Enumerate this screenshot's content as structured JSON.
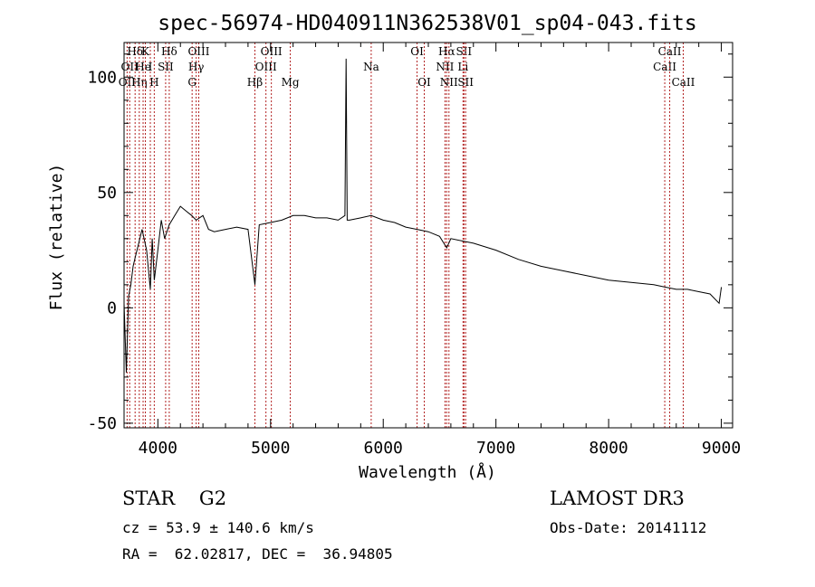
{
  "chart_data": {
    "type": "line",
    "title": "spec-56974-HD040911N362538V01_sp04-043.fits",
    "xlabel": "Wavelength (Å)",
    "ylabel": "Flux (relative)",
    "xlim": [
      3700,
      9100
    ],
    "ylim": [
      -52,
      115
    ],
    "xticks": [
      4000,
      5000,
      6000,
      7000,
      8000,
      9000
    ],
    "yticks": [
      -50,
      0,
      50,
      100
    ],
    "line_color": "#000000",
    "marker_color": "#b22222",
    "series": [
      {
        "name": "spectrum",
        "x": [
          3700,
          3720,
          3740,
          3760,
          3780,
          3800,
          3830,
          3860,
          3900,
          3933,
          3950,
          3968,
          4000,
          4030,
          4060,
          4101,
          4150,
          4200,
          4250,
          4300,
          4340,
          4400,
          4450,
          4500,
          4600,
          4700,
          4800,
          4861,
          4900,
          5000,
          5100,
          5200,
          5300,
          5400,
          5500,
          5600,
          5660,
          5670,
          5680,
          5700,
          5800,
          5893,
          6000,
          6100,
          6200,
          6300,
          6400,
          6500,
          6563,
          6600,
          6700,
          6800,
          7000,
          7200,
          7400,
          7600,
          7800,
          8000,
          8200,
          8400,
          8500,
          8600,
          8700,
          8800,
          8900,
          8980,
          9000
        ],
        "y": [
          2,
          -28,
          5,
          10,
          18,
          22,
          28,
          34,
          25,
          8,
          30,
          12,
          25,
          38,
          30,
          36,
          40,
          44,
          42,
          40,
          38,
          40,
          34,
          33,
          34,
          35,
          34,
          10,
          36,
          37,
          38,
          40,
          40,
          39,
          39,
          38,
          40,
          108,
          38,
          38,
          39,
          40,
          38,
          37,
          35,
          34,
          33,
          31,
          26,
          30,
          29,
          28,
          25,
          21,
          18,
          16,
          14,
          12,
          11,
          10,
          9,
          8,
          8,
          7,
          6,
          2,
          9
        ]
      }
    ],
    "lines": [
      {
        "wl": 3727,
        "row": 2,
        "label": "OII"
      },
      {
        "wl": 3750,
        "row": 1,
        "label": "OII"
      },
      {
        "wl": 3798,
        "row": 0,
        "label": "Hδ"
      },
      {
        "wl": 3835,
        "row": 2,
        "label": "Hη"
      },
      {
        "wl": 3869,
        "row": 1,
        "label": "He"
      },
      {
        "wl": 3889,
        "row": 0,
        "label": "K"
      },
      {
        "wl": 3933,
        "row": 1,
        "label": "I"
      },
      {
        "wl": 3968,
        "row": 2,
        "label": "H"
      },
      {
        "wl": 4069,
        "row": 1,
        "label": "SII"
      },
      {
        "wl": 4101,
        "row": 0,
        "label": "Hδ"
      },
      {
        "wl": 4304,
        "row": 2,
        "label": "G"
      },
      {
        "wl": 4340,
        "row": 1,
        "label": "Hγ"
      },
      {
        "wl": 4363,
        "row": 0,
        "label": "OIII"
      },
      {
        "wl": 4861,
        "row": 2,
        "label": "Hβ"
      },
      {
        "wl": 4959,
        "row": 1,
        "label": "OIII"
      },
      {
        "wl": 5007,
        "row": 0,
        "label": "OIII"
      },
      {
        "wl": 5175,
        "row": 2,
        "label": "Mg"
      },
      {
        "wl": 5893,
        "row": 1,
        "label": "Na"
      },
      {
        "wl": 6300,
        "row": 0,
        "label": "OI"
      },
      {
        "wl": 6364,
        "row": 2,
        "label": "OI"
      },
      {
        "wl": 6548,
        "row": 1,
        "label": "NII"
      },
      {
        "wl": 6563,
        "row": 0,
        "label": "Hα"
      },
      {
        "wl": 6583,
        "row": 2,
        "label": "NII"
      },
      {
        "wl": 6708,
        "row": 1,
        "label": "Li"
      },
      {
        "wl": 6716,
        "row": 0,
        "label": "SII"
      },
      {
        "wl": 6731,
        "row": 2,
        "label": "SII"
      },
      {
        "wl": 8498,
        "row": 1,
        "label": "CaII"
      },
      {
        "wl": 8542,
        "row": 0,
        "label": "CaII"
      },
      {
        "wl": 8662,
        "row": 2,
        "label": "CaII"
      }
    ]
  },
  "info": {
    "class": "STAR    G2",
    "survey": "LAMOST DR3",
    "cz": "cz = 53.9 ± 140.6 km/s",
    "obs_date": "Obs-Date: 20141112",
    "coords": "RA =  62.02817, DEC =  36.94805"
  }
}
